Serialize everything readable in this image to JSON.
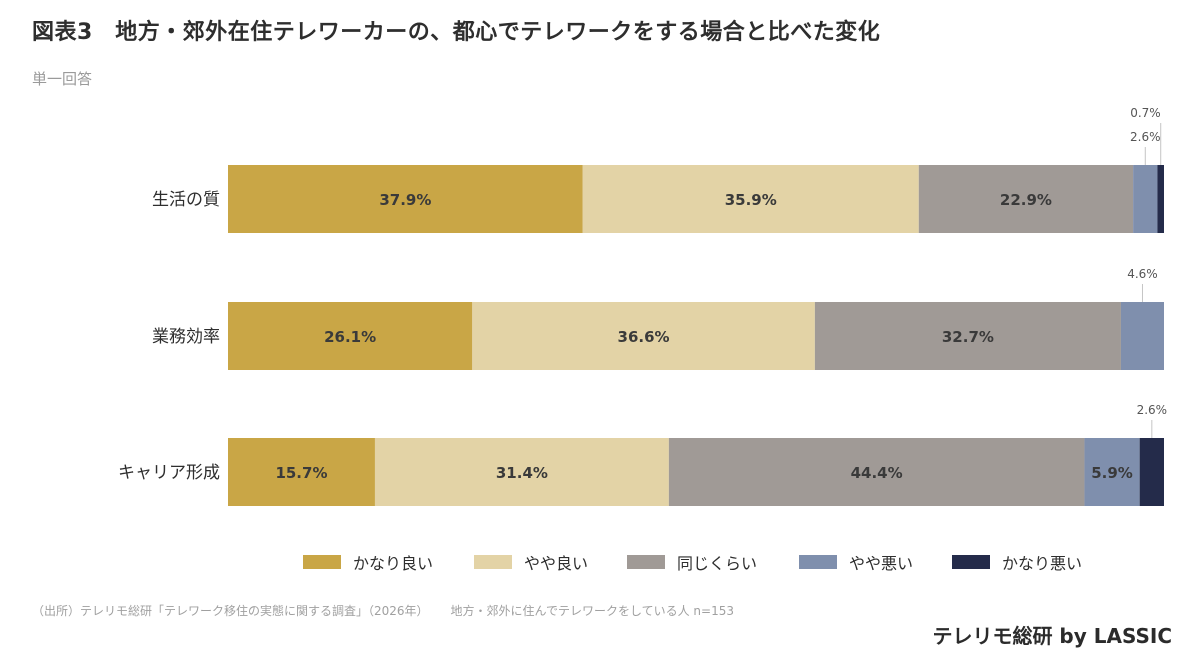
{
  "header": {
    "title": "図表3　地方・郊外在住テレワーカーの、都心でテレワークをする場合と比べた変化",
    "subtitle": "単一回答"
  },
  "chart_data": {
    "type": "bar",
    "orientation": "horizontal",
    "stacked": true,
    "normalized": true,
    "categories": [
      "生活の質",
      "業務効率",
      "キャリア形成"
    ],
    "series": [
      {
        "name": "かなり良い",
        "values": [
          37.9,
          26.1,
          15.7
        ],
        "color": "#c9a646"
      },
      {
        "name": "やや良い",
        "values": [
          35.9,
          36.6,
          31.4
        ],
        "color": "#e3d3a6"
      },
      {
        "name": "同じくらい",
        "values": [
          22.9,
          32.7,
          44.4
        ],
        "color": "#a09a96"
      },
      {
        "name": "やや悪い",
        "values": [
          2.6,
          4.6,
          5.9
        ],
        "color": "#7f8fad"
      },
      {
        "name": "かなり悪い",
        "values": [
          0.7,
          0.0,
          2.6
        ],
        "color": "#242b4a"
      }
    ],
    "value_labels": [
      [
        "37.9%",
        "35.9%",
        "22.9%",
        "2.6%",
        "0.7%"
      ],
      [
        "26.1%",
        "36.6%",
        "32.7%",
        "4.6%",
        ""
      ],
      [
        "15.7%",
        "31.4%",
        "44.4%",
        "5.9%",
        "2.6%"
      ]
    ],
    "xlim": [
      0,
      100
    ],
    "grid": false,
    "legend_position": "bottom"
  },
  "footer": {
    "source": "（出所）テレリモ総研「テレワーク移住の実態に関する調査」（2026年）",
    "sample": "地方・郊外に住んでテレワークをしている人 n=153",
    "brand": "テレリモ総研 by LASSIC"
  }
}
